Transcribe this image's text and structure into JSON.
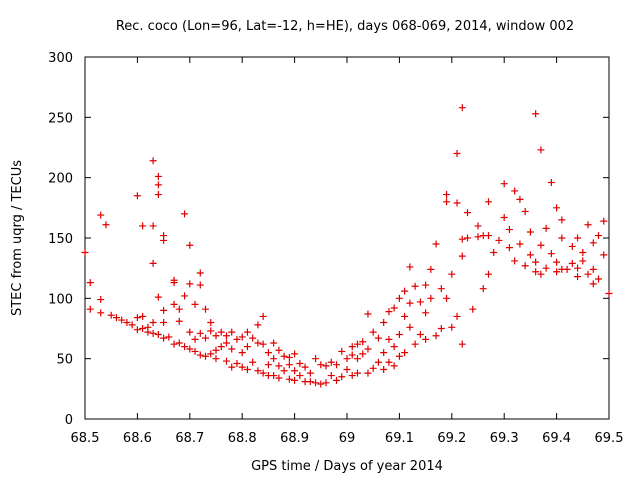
{
  "chart_data": {
    "type": "scatter",
    "title": "Rec. coco (Lon=96, Lat=-12, h=HE), days 068-069, 2014, window 002",
    "xlabel": "GPS time / Days of year 2014",
    "ylabel": "STEC from uqrg / TECUs",
    "xlim": [
      68.5,
      69.5
    ],
    "ylim": [
      0,
      300
    ],
    "x_ticks": [
      68.5,
      68.6,
      68.7,
      68.8,
      68.9,
      69.0,
      69.1,
      69.2,
      69.3,
      69.4,
      69.5
    ],
    "x_tick_labels": [
      "68.5",
      "68.6",
      "68.7",
      "68.8",
      "68.9",
      "69",
      "69.1",
      "69.2",
      "69.3",
      "69.4",
      "69.5"
    ],
    "y_ticks": [
      0,
      50,
      100,
      150,
      200,
      250,
      300
    ],
    "y_tick_labels": [
      "0",
      "50",
      "100",
      "150",
      "200",
      "250",
      "300"
    ],
    "marker": "+",
    "color": "#e00000",
    "points": [
      [
        68.5,
        138
      ],
      [
        68.51,
        113
      ],
      [
        68.51,
        91
      ],
      [
        68.53,
        99
      ],
      [
        68.53,
        169
      ],
      [
        68.53,
        88
      ],
      [
        68.54,
        161
      ],
      [
        68.55,
        86
      ],
      [
        68.56,
        84
      ],
      [
        68.57,
        82
      ],
      [
        68.58,
        80
      ],
      [
        68.59,
        78
      ],
      [
        68.6,
        185
      ],
      [
        68.6,
        84
      ],
      [
        68.6,
        74
      ],
      [
        68.61,
        160
      ],
      [
        68.61,
        85
      ],
      [
        68.61,
        75
      ],
      [
        68.62,
        72
      ],
      [
        68.62,
        76
      ],
      [
        68.63,
        214
      ],
      [
        68.63,
        160
      ],
      [
        68.63,
        129
      ],
      [
        68.63,
        80
      ],
      [
        68.63,
        71
      ],
      [
        68.64,
        201
      ],
      [
        68.64,
        194
      ],
      [
        68.64,
        186
      ],
      [
        68.64,
        101
      ],
      [
        68.64,
        70
      ],
      [
        68.65,
        152
      ],
      [
        68.65,
        148
      ],
      [
        68.65,
        90
      ],
      [
        68.65,
        80
      ],
      [
        68.65,
        67
      ],
      [
        68.66,
        68
      ],
      [
        68.67,
        115
      ],
      [
        68.67,
        113
      ],
      [
        68.67,
        95
      ],
      [
        68.67,
        62
      ],
      [
        68.68,
        91
      ],
      [
        68.68,
        81
      ],
      [
        68.68,
        63
      ],
      [
        68.69,
        170
      ],
      [
        68.69,
        102
      ],
      [
        68.69,
        60
      ],
      [
        68.7,
        144
      ],
      [
        68.7,
        112
      ],
      [
        68.7,
        72
      ],
      [
        68.7,
        58
      ],
      [
        68.71,
        95
      ],
      [
        68.71,
        66
      ],
      [
        68.71,
        56
      ],
      [
        68.72,
        121
      ],
      [
        68.72,
        111
      ],
      [
        68.72,
        71
      ],
      [
        68.72,
        53
      ],
      [
        68.73,
        91
      ],
      [
        68.73,
        67
      ],
      [
        68.73,
        52
      ],
      [
        68.74,
        80
      ],
      [
        68.74,
        73
      ],
      [
        68.74,
        54
      ],
      [
        68.75,
        69
      ],
      [
        68.75,
        57
      ],
      [
        68.75,
        50
      ],
      [
        68.76,
        72
      ],
      [
        68.76,
        60
      ],
      [
        68.77,
        69
      ],
      [
        68.77,
        63
      ],
      [
        68.77,
        48
      ],
      [
        68.78,
        72
      ],
      [
        68.78,
        58
      ],
      [
        68.78,
        43
      ],
      [
        68.79,
        66
      ],
      [
        68.79,
        46
      ],
      [
        68.8,
        68
      ],
      [
        68.8,
        55
      ],
      [
        68.8,
        43
      ],
      [
        68.81,
        72
      ],
      [
        68.81,
        60
      ],
      [
        68.81,
        41
      ],
      [
        68.82,
        67
      ],
      [
        68.82,
        47
      ],
      [
        68.83,
        78
      ],
      [
        68.83,
        63
      ],
      [
        68.83,
        40
      ],
      [
        68.84,
        85
      ],
      [
        68.84,
        62
      ],
      [
        68.84,
        38
      ],
      [
        68.85,
        55
      ],
      [
        68.85,
        45
      ],
      [
        68.85,
        36
      ],
      [
        68.86,
        63
      ],
      [
        68.86,
        50
      ],
      [
        68.86,
        36
      ],
      [
        68.87,
        57
      ],
      [
        68.87,
        44
      ],
      [
        68.87,
        34
      ],
      [
        68.88,
        52
      ],
      [
        68.88,
        40
      ],
      [
        68.89,
        51
      ],
      [
        68.89,
        45
      ],
      [
        68.89,
        33
      ],
      [
        68.9,
        54
      ],
      [
        68.9,
        40
      ],
      [
        68.9,
        32
      ],
      [
        68.91,
        46
      ],
      [
        68.91,
        36
      ],
      [
        68.92,
        43
      ],
      [
        68.92,
        31
      ],
      [
        68.93,
        38
      ],
      [
        68.93,
        31
      ],
      [
        68.94,
        50
      ],
      [
        68.94,
        30
      ],
      [
        68.95,
        45
      ],
      [
        68.95,
        29
      ],
      [
        68.96,
        44
      ],
      [
        68.96,
        30
      ],
      [
        68.97,
        47
      ],
      [
        68.97,
        36
      ],
      [
        68.98,
        45
      ],
      [
        68.98,
        32
      ],
      [
        68.99,
        56
      ],
      [
        68.99,
        35
      ],
      [
        69.0,
        50
      ],
      [
        69.0,
        41
      ],
      [
        69.01,
        60
      ],
      [
        69.01,
        53
      ],
      [
        69.01,
        36
      ],
      [
        69.02,
        62
      ],
      [
        69.02,
        50
      ],
      [
        69.02,
        38
      ],
      [
        69.03,
        64
      ],
      [
        69.03,
        54
      ],
      [
        69.04,
        87
      ],
      [
        69.04,
        58
      ],
      [
        69.04,
        38
      ],
      [
        69.05,
        72
      ],
      [
        69.05,
        42
      ],
      [
        69.06,
        67
      ],
      [
        69.06,
        47
      ],
      [
        69.07,
        80
      ],
      [
        69.07,
        55
      ],
      [
        69.07,
        41
      ],
      [
        69.08,
        89
      ],
      [
        69.08,
        66
      ],
      [
        69.08,
        47
      ],
      [
        69.09,
        92
      ],
      [
        69.09,
        60
      ],
      [
        69.09,
        44
      ],
      [
        69.1,
        100
      ],
      [
        69.1,
        70
      ],
      [
        69.1,
        52
      ],
      [
        69.11,
        106
      ],
      [
        69.11,
        85
      ],
      [
        69.11,
        55
      ],
      [
        69.12,
        126
      ],
      [
        69.12,
        96
      ],
      [
        69.12,
        76
      ],
      [
        69.13,
        110
      ],
      [
        69.13,
        62
      ],
      [
        69.14,
        97
      ],
      [
        69.14,
        70
      ],
      [
        69.15,
        111
      ],
      [
        69.15,
        88
      ],
      [
        69.15,
        66
      ],
      [
        69.16,
        124
      ],
      [
        69.16,
        100
      ],
      [
        69.17,
        145
      ],
      [
        69.17,
        69
      ],
      [
        69.18,
        108
      ],
      [
        69.18,
        75
      ],
      [
        69.19,
        186
      ],
      [
        69.19,
        180
      ],
      [
        69.19,
        100
      ],
      [
        69.2,
        120
      ],
      [
        69.2,
        76
      ],
      [
        69.21,
        220
      ],
      [
        69.21,
        179
      ],
      [
        69.21,
        85
      ],
      [
        69.22,
        258
      ],
      [
        69.22,
        149
      ],
      [
        69.22,
        135
      ],
      [
        69.22,
        62
      ],
      [
        69.23,
        171
      ],
      [
        69.23,
        150
      ],
      [
        69.24,
        91
      ],
      [
        69.25,
        160
      ],
      [
        69.25,
        151
      ],
      [
        69.26,
        108
      ],
      [
        69.26,
        152
      ],
      [
        69.27,
        180
      ],
      [
        69.27,
        120
      ],
      [
        69.27,
        152
      ],
      [
        69.28,
        138
      ],
      [
        69.29,
        148
      ],
      [
        69.3,
        195
      ],
      [
        69.3,
        167
      ],
      [
        69.31,
        157
      ],
      [
        69.31,
        142
      ],
      [
        69.32,
        189
      ],
      [
        69.32,
        131
      ],
      [
        69.33,
        182
      ],
      [
        69.33,
        145
      ],
      [
        69.34,
        127
      ],
      [
        69.34,
        172
      ],
      [
        69.35,
        155
      ],
      [
        69.35,
        136
      ],
      [
        69.36,
        253
      ],
      [
        69.36,
        130
      ],
      [
        69.36,
        122
      ],
      [
        69.37,
        223
      ],
      [
        69.37,
        144
      ],
      [
        69.37,
        120
      ],
      [
        69.38,
        125
      ],
      [
        69.38,
        158
      ],
      [
        69.39,
        196
      ],
      [
        69.39,
        137
      ],
      [
        69.4,
        175
      ],
      [
        69.4,
        130
      ],
      [
        69.4,
        122
      ],
      [
        69.41,
        165
      ],
      [
        69.41,
        150
      ],
      [
        69.41,
        124
      ],
      [
        69.42,
        124
      ],
      [
        69.43,
        143
      ],
      [
        69.43,
        129
      ],
      [
        69.44,
        150
      ],
      [
        69.44,
        125
      ],
      [
        69.44,
        118
      ],
      [
        69.45,
        138
      ],
      [
        69.45,
        131
      ],
      [
        69.46,
        161
      ],
      [
        69.46,
        120
      ],
      [
        69.47,
        146
      ],
      [
        69.47,
        124
      ],
      [
        69.47,
        112
      ],
      [
        69.48,
        152
      ],
      [
        69.48,
        116
      ],
      [
        69.49,
        164
      ],
      [
        69.49,
        136
      ],
      [
        69.5,
        104
      ]
    ]
  }
}
